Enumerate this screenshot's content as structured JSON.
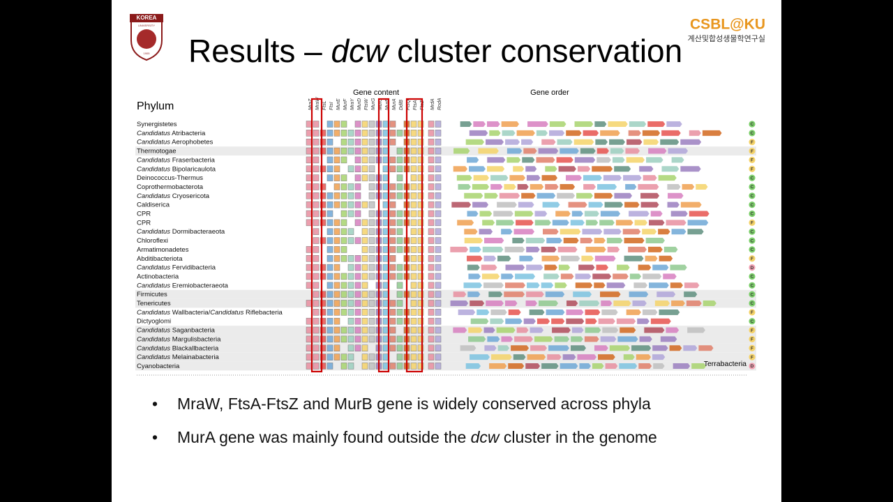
{
  "logo": {
    "top": "KOREA",
    "bottom": "UNIVERSITY",
    "year": "1905"
  },
  "lab": {
    "name": "CSBL@KU",
    "subtitle": "계산및합성생물학연구실"
  },
  "title": [
    {
      "text": "Results – "
    },
    {
      "text": "dcw",
      "italic": true
    },
    {
      "text": " cluster conservation"
    }
  ],
  "figure": {
    "gene_content": "Gene content",
    "gene_order": "Gene order",
    "phylum": "Phylum",
    "group": "Terrabacteria",
    "genes": [
      "MraZ",
      "MraW",
      "FtsL",
      "FtsI",
      "MurE",
      "MurF",
      "MraY",
      "MurD",
      "FtsW",
      "MurG",
      "MurC",
      "MurB",
      "MurA",
      "DdlB",
      "FtsQ",
      "FtsA",
      "FtsZ",
      "MrdA",
      "RodA"
    ],
    "rows": [
      {
        "label": [
          {
            "text": "Synergistetes"
          }
        ],
        "status": "C"
      },
      {
        "label": [
          {
            "text": "Candidatus",
            "italic": true
          },
          {
            "text": " Atribacteria"
          }
        ],
        "status": "C"
      },
      {
        "label": [
          {
            "text": "Candidatus",
            "italic": true
          },
          {
            "text": " Aerophobetes"
          }
        ],
        "status": "F"
      },
      {
        "label": [
          {
            "text": "Thermotogae"
          }
        ],
        "status": "F"
      },
      {
        "label": [
          {
            "text": "Candidatus",
            "italic": true
          },
          {
            "text": " Fraserbacteria"
          }
        ],
        "status": "F"
      },
      {
        "label": [
          {
            "text": "Candidatus",
            "italic": true
          },
          {
            "text": " Bipolaricaulota"
          }
        ],
        "status": "F"
      },
      {
        "label": [
          {
            "text": "Deinococcus-Thermus"
          }
        ],
        "status": "C"
      },
      {
        "label": [
          {
            "text": "Coprothermobacterota"
          }
        ],
        "status": "C"
      },
      {
        "label": [
          {
            "text": "Candidatus",
            "italic": true
          },
          {
            "text": " Cryosericota"
          }
        ],
        "status": "C"
      },
      {
        "label": [
          {
            "text": "Caldiserica"
          }
        ],
        "status": "C"
      },
      {
        "label": [
          {
            "text": "CPR"
          }
        ],
        "status": "C"
      },
      {
        "label": [
          {
            "text": "CPR"
          }
        ],
        "status": "F"
      },
      {
        "label": [
          {
            "text": "Candidatus",
            "italic": true
          },
          {
            "text": " Dormibacteraeota"
          }
        ],
        "status": "C"
      },
      {
        "label": [
          {
            "text": "Chloroflexi"
          }
        ],
        "status": "C"
      },
      {
        "label": [
          {
            "text": "Armatimonadetes"
          }
        ],
        "status": "C"
      },
      {
        "label": [
          {
            "text": "Abditibacteriota"
          }
        ],
        "status": "F"
      },
      {
        "label": [
          {
            "text": "Candidatus",
            "italic": true
          },
          {
            "text": " Fervidibacteria"
          }
        ],
        "status": "D"
      },
      {
        "label": [
          {
            "text": "Actinobacteria"
          }
        ],
        "status": "C"
      },
      {
        "label": [
          {
            "text": "Candidatus",
            "italic": true
          },
          {
            "text": " Eremiobacteraeota"
          }
        ],
        "status": "C"
      },
      {
        "label": [
          {
            "text": "Firmicutes"
          }
        ],
        "status": "C"
      },
      {
        "label": [
          {
            "text": "Tenericutes"
          }
        ],
        "status": "C"
      },
      {
        "label": [
          {
            "text": "Candidatus",
            "italic": true
          },
          {
            "text": " Wallbacteria/"
          },
          {
            "text": "Candidatus",
            "italic": true
          },
          {
            "text": " Riflebacteria"
          }
        ],
        "status": "F"
      },
      {
        "label": [
          {
            "text": "Dictyoglomi"
          }
        ],
        "status": "C"
      },
      {
        "label": [
          {
            "text": "Candidatus",
            "italic": true
          },
          {
            "text": " Saganbacteria"
          }
        ],
        "status": "F"
      },
      {
        "label": [
          {
            "text": "Candidatus",
            "italic": true
          },
          {
            "text": " Margulisbacteria"
          }
        ],
        "status": "F"
      },
      {
        "label": [
          {
            "text": "Candidatus",
            "italic": true
          },
          {
            "text": " Blackallbacteria"
          }
        ],
        "status": "F"
      },
      {
        "label": [
          {
            "text": "Candidatus",
            "italic": true
          },
          {
            "text": " Melainabacteria"
          }
        ],
        "status": "F"
      },
      {
        "label": [
          {
            "text": "Cyanobacteria"
          }
        ],
        "status": "D"
      }
    ]
  },
  "bullets": [
    [
      {
        "text": "MraW, FtsA-FtsZ and MurB gene is widely conserved across phyla"
      }
    ],
    [
      {
        "text": "MurA gene was mainly found outside the "
      },
      {
        "text": "dcw",
        "italic": true
      },
      {
        "text": " cluster in the genome"
      }
    ]
  ]
}
